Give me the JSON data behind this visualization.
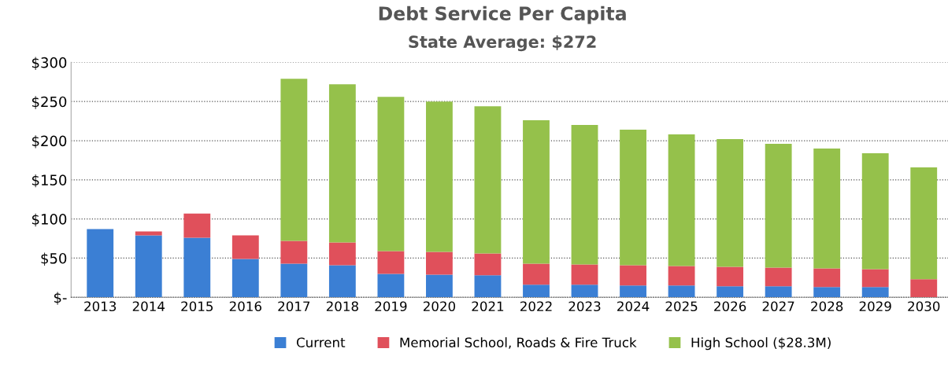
{
  "chart_data": {
    "type": "bar",
    "title": "Debt Service Per Capita",
    "subtitle": "State Average: $272",
    "categories": [
      "2013",
      "2014",
      "2015",
      "2016",
      "2017",
      "2018",
      "2019",
      "2020",
      "2021",
      "2022",
      "2023",
      "2024",
      "2025",
      "2026",
      "2027",
      "2028",
      "2029",
      "2030"
    ],
    "stacked": true,
    "series": [
      {
        "name": "Current",
        "color": "#3b7fd4",
        "values": [
          87,
          79,
          76,
          49,
          43,
          41,
          30,
          29,
          28,
          16,
          16,
          15,
          15,
          14,
          14,
          13,
          13,
          0
        ]
      },
      {
        "name": "Memorial School, Roads & Fire Truck",
        "color": "#e0505b",
        "values": [
          0,
          5,
          31,
          30,
          29,
          29,
          29,
          29,
          28,
          27,
          26,
          26,
          25,
          25,
          24,
          24,
          23,
          23
        ]
      },
      {
        "name": "High School ($28.3M)",
        "color": "#95c14b",
        "values": [
          0,
          0,
          0,
          0,
          207,
          202,
          197,
          192,
          188,
          183,
          178,
          173,
          168,
          163,
          158,
          153,
          148,
          143
        ]
      }
    ],
    "ylim": [
      0,
      300
    ],
    "yticks": [
      {
        "value": 0,
        "label": "$-"
      },
      {
        "value": 50,
        "label": "$50"
      },
      {
        "value": 100,
        "label": "$100"
      },
      {
        "value": 150,
        "label": "$150"
      },
      {
        "value": 200,
        "label": "$200"
      },
      {
        "value": 250,
        "label": "$250"
      },
      {
        "value": 300,
        "label": "$300"
      }
    ],
    "grid": "y",
    "legend": "bottom"
  }
}
